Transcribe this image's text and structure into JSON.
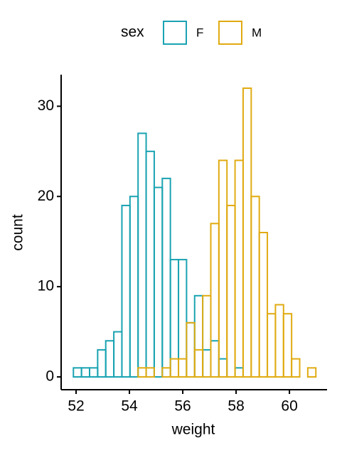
{
  "chart_data": {
    "type": "histogram",
    "x_label": "weight",
    "y_label": "count",
    "legend_title": "sex",
    "legend_position": "top",
    "bins": [
      51.9,
      52.203,
      52.506,
      52.809,
      53.112,
      53.415,
      53.718,
      54.021,
      54.324,
      54.627,
      54.93,
      55.233,
      55.536,
      55.839,
      56.142,
      56.445,
      56.748,
      57.051,
      57.354,
      57.657,
      57.96,
      58.263,
      58.566,
      58.869,
      59.172,
      59.475,
      59.778,
      60.081,
      60.384,
      60.687,
      60.99
    ],
    "series": [
      {
        "name": "F",
        "color": "#1aa3b2",
        "values": [
          1,
          1,
          1,
          3,
          4,
          5,
          19,
          20,
          27,
          25,
          21,
          22,
          13,
          13,
          6,
          9,
          3,
          4,
          2,
          0,
          1,
          0,
          0,
          0,
          0,
          0,
          0,
          0,
          0,
          0
        ]
      },
      {
        "name": "M",
        "color": "#e0ab12",
        "values": [
          0,
          0,
          0,
          0,
          0,
          0,
          0,
          0,
          1,
          1,
          0,
          1,
          2,
          2,
          6,
          3,
          9,
          17,
          24,
          19,
          24,
          32,
          20,
          16,
          7,
          8,
          7,
          2,
          0,
          1
        ]
      }
    ],
    "xlim": [
      51.44,
      61.41
    ],
    "xticks": [
      52,
      54,
      56,
      58,
      60
    ],
    "ylim": [
      -1.42,
      33.5
    ],
    "yticks": [
      0,
      10,
      20,
      30
    ]
  }
}
